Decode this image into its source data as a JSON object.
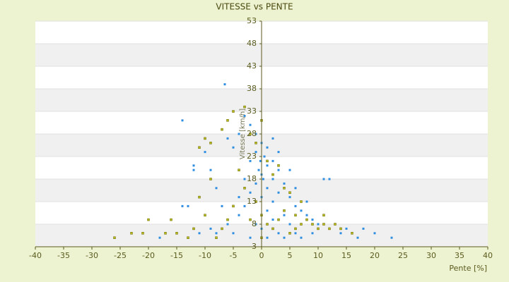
{
  "chart_data": {
    "type": "scatter",
    "title": "VITESSE vs PENTE",
    "x_label": "Pente [%]",
    "y_label": "Vitesse [km/h]",
    "xlim": [
      -40,
      40
    ],
    "xticks": [
      -40,
      -35,
      -30,
      -25,
      -20,
      -15,
      -10,
      -5,
      0,
      5,
      10,
      15,
      20,
      25,
      30,
      35,
      40
    ],
    "ylim": [
      3,
      53
    ],
    "yticks": [
      3,
      8,
      13,
      18,
      23,
      28,
      33,
      38,
      43,
      48,
      53
    ],
    "grid": true,
    "series": [
      {
        "color": "#2f8ee0",
        "x": [
          -6.5,
          -14,
          -10,
          -12,
          -12,
          -14,
          -13,
          -18,
          23,
          20,
          18,
          15,
          12,
          11,
          -3,
          -2,
          -1,
          0,
          1,
          -1,
          0.5,
          2,
          -2,
          1,
          3,
          -0.5,
          0,
          2,
          4,
          -1,
          1,
          3,
          5,
          -2,
          0,
          2,
          6,
          7,
          -3,
          1,
          4,
          8,
          9,
          -4,
          2,
          5,
          10,
          12,
          -1,
          0,
          3,
          6,
          14,
          -5,
          -8,
          -9,
          -11,
          1,
          4,
          7,
          -2,
          -6,
          -7,
          -8,
          -9,
          -5,
          -4,
          -6,
          -3,
          -4,
          2,
          3,
          5,
          6,
          8,
          9,
          16,
          17,
          -0.2,
          0.3
        ],
        "y": [
          39,
          31,
          24,
          21,
          20,
          12,
          12,
          5,
          5,
          6,
          7,
          7,
          18,
          18,
          32,
          30,
          28,
          26,
          25,
          24,
          23,
          22,
          22,
          21,
          20,
          20,
          19,
          18,
          17,
          17,
          16,
          15,
          14,
          15,
          14,
          13,
          12,
          11,
          12,
          11,
          10,
          10,
          9,
          10,
          9,
          8,
          8,
          7,
          8,
          7,
          6,
          6,
          6,
          6,
          6,
          7,
          6,
          5,
          5,
          5,
          5,
          8,
          12,
          16,
          20,
          25,
          28,
          27,
          18,
          14,
          27,
          24,
          20,
          16,
          13,
          6,
          6,
          5,
          22,
          18
        ]
      },
      {
        "color": "#b8b820",
        "x": [
          -26,
          -23,
          -21,
          -20,
          -17,
          -15,
          -13,
          -10,
          -11,
          -11,
          -10,
          -9,
          -7,
          -6,
          -5,
          -3,
          -2,
          -1,
          0,
          1,
          2,
          3,
          4,
          5,
          6,
          7,
          8,
          9,
          10,
          11,
          12,
          13,
          16,
          -4,
          -3,
          -5,
          -6,
          -7,
          -8,
          0,
          1,
          2,
          3,
          5,
          7,
          -1,
          -2,
          0,
          4,
          6,
          -9,
          -12,
          14,
          -16,
          11
        ],
        "y": [
          5,
          6,
          6,
          9,
          6,
          6,
          5,
          10,
          14,
          25,
          27,
          26,
          29,
          31,
          33,
          34,
          28,
          26,
          31,
          22,
          19,
          21,
          16,
          15,
          10,
          13,
          9,
          8,
          7,
          8,
          7,
          8,
          6,
          20,
          16,
          12,
          9,
          7,
          5,
          10,
          8,
          7,
          9,
          6,
          8,
          13,
          9,
          5,
          11,
          7,
          18,
          7,
          7,
          9,
          10
        ]
      }
    ]
  }
}
